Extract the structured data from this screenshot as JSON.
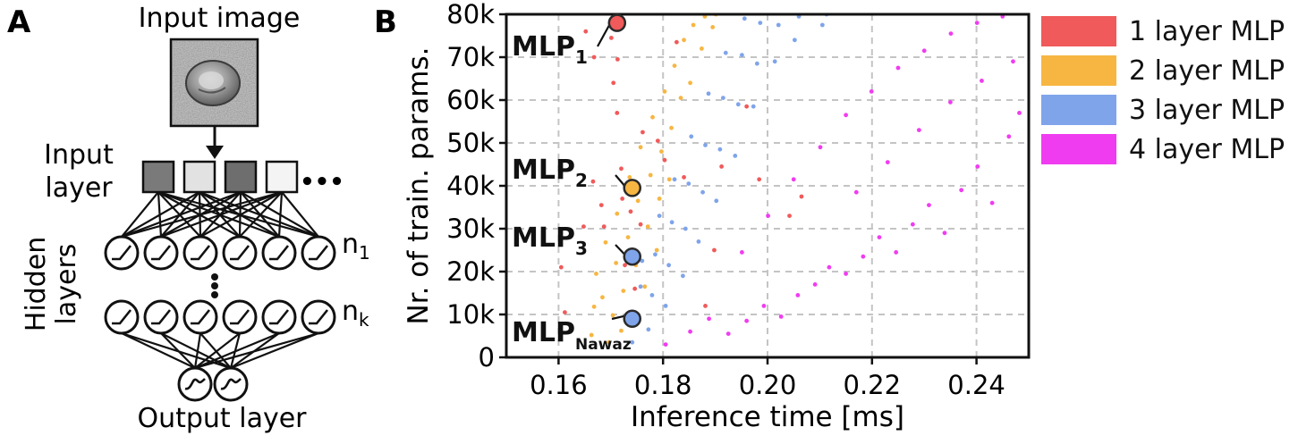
{
  "panel_a": {
    "letter": "A",
    "input_image_label": "Input image",
    "input_layer_label_1": "Input",
    "input_layer_label_2": "layer",
    "input_ellipsis": "•••",
    "hidden_layers_label_1": "Hidden",
    "hidden_layers_label_2": "layers",
    "n1_label": "n",
    "n1_sub": "1",
    "nk_label": "n",
    "nk_sub": "k",
    "output_layer_label": "Output layer",
    "input_squares": [
      "#7a7a7a",
      "#e2e2e2",
      "#6e6e6e",
      "#f4f4f4"
    ]
  },
  "panel_b": {
    "letter": "B"
  },
  "chart_data": {
    "type": "scatter",
    "title": "",
    "xlabel": "Inference time [ms]",
    "ylabel": "Nr. of train. params.",
    "xlim": [
      0.15,
      0.25
    ],
    "ylim": [
      0,
      80000
    ],
    "xticks": [
      0.16,
      0.18,
      0.2,
      0.22,
      0.24
    ],
    "xtick_labels": [
      "0.16",
      "0.18",
      "0.20",
      "0.22",
      "0.24"
    ],
    "yticks": [
      0,
      10000,
      20000,
      30000,
      40000,
      50000,
      60000,
      70000,
      80000
    ],
    "ytick_labels": [
      "0",
      "10k",
      "20k",
      "30k",
      "40k",
      "50k",
      "60k",
      "70k",
      "80k"
    ],
    "grid": true,
    "legend_position": "outside-right",
    "series": [
      {
        "name": "1 layer MLP",
        "color": "#f05a5a",
        "points": [
          [
            0.1605,
            21000
          ],
          [
            0.1612,
            10500
          ],
          [
            0.1648,
            30500
          ],
          [
            0.1652,
            76000
          ],
          [
            0.1666,
            41000
          ],
          [
            0.1668,
            70000
          ],
          [
            0.1682,
            35500
          ],
          [
            0.1687,
            30500
          ],
          [
            0.1701,
            74500
          ],
          [
            0.1705,
            64000
          ],
          [
            0.1712,
            57000
          ],
          [
            0.1713,
            69500
          ],
          [
            0.172,
            44000
          ],
          [
            0.1722,
            37000
          ],
          [
            0.1727,
            21500
          ],
          [
            0.1738,
            34000
          ],
          [
            0.1741,
            23500
          ],
          [
            0.1746,
            16000
          ],
          [
            0.1757,
            31000
          ],
          [
            0.1761,
            52500
          ],
          [
            0.179,
            50500
          ],
          [
            0.1803,
            46000
          ],
          [
            0.1826,
            73500
          ],
          [
            0.184,
            42000
          ],
          [
            0.1881,
            12000
          ],
          [
            0.1898,
            25000
          ],
          [
            0.1912,
            44500
          ],
          [
            0.196,
            58500
          ],
          [
            0.1984,
            41500
          ],
          [
            0.2042,
            33000
          ],
          [
            0.2065,
            37500
          ]
        ]
      },
      {
        "name": "2 layer MLP",
        "color": "#f7b642",
        "points": [
          [
            0.1663,
            5200
          ],
          [
            0.1668,
            11800
          ],
          [
            0.1672,
            19500
          ],
          [
            0.1684,
            14000
          ],
          [
            0.169,
            26800
          ],
          [
            0.1696,
            3500
          ],
          [
            0.1704,
            9800
          ],
          [
            0.171,
            22000
          ],
          [
            0.1712,
            33500
          ],
          [
            0.172,
            6200
          ],
          [
            0.1724,
            15500
          ],
          [
            0.1733,
            28000
          ],
          [
            0.1736,
            42000
          ],
          [
            0.1741,
            10000
          ],
          [
            0.1748,
            21500
          ],
          [
            0.1752,
            36500
          ],
          [
            0.1757,
            49000
          ],
          [
            0.1765,
            16500
          ],
          [
            0.1771,
            30500
          ],
          [
            0.1776,
            42500
          ],
          [
            0.178,
            56000
          ],
          [
            0.1788,
            25000
          ],
          [
            0.1793,
            37000
          ],
          [
            0.1797,
            48000
          ],
          [
            0.1803,
            62000
          ],
          [
            0.1812,
            41500
          ],
          [
            0.1816,
            53500
          ],
          [
            0.1822,
            68000
          ],
          [
            0.1834,
            60500
          ],
          [
            0.184,
            74000
          ],
          [
            0.1852,
            64000
          ],
          [
            0.1858,
            77500
          ],
          [
            0.1874,
            72000
          ],
          [
            0.188,
            79500
          ],
          [
            0.1895,
            77000
          ],
          [
            0.1901,
            80000
          ]
        ]
      },
      {
        "name": "3 layer MLP",
        "color": "#7fa4ea",
        "points": [
          [
            0.1741,
            3500
          ],
          [
            0.1749,
            9500
          ],
          [
            0.1757,
            16500
          ],
          [
            0.176,
            22500
          ],
          [
            0.1772,
            6500
          ],
          [
            0.1779,
            14500
          ],
          [
            0.1785,
            24000
          ],
          [
            0.1793,
            33000
          ],
          [
            0.1805,
            12000
          ],
          [
            0.1811,
            21500
          ],
          [
            0.1817,
            31500
          ],
          [
            0.1822,
            41500
          ],
          [
            0.1838,
            19000
          ],
          [
            0.1843,
            30000
          ],
          [
            0.1849,
            40500
          ],
          [
            0.1854,
            51500
          ],
          [
            0.1868,
            27000
          ],
          [
            0.1876,
            38500
          ],
          [
            0.1881,
            49500
          ],
          [
            0.1887,
            61500
          ],
          [
            0.1902,
            36500
          ],
          [
            0.1909,
            48500
          ],
          [
            0.1915,
            60500
          ],
          [
            0.192,
            71000
          ],
          [
            0.1938,
            47000
          ],
          [
            0.1944,
            59000
          ],
          [
            0.1951,
            70500
          ],
          [
            0.1956,
            79000
          ],
          [
            0.1973,
            58500
          ],
          [
            0.198,
            68500
          ],
          [
            0.1986,
            78000
          ],
          [
            0.2014,
            69000
          ],
          [
            0.2021,
            77500
          ],
          [
            0.2052,
            74000
          ],
          [
            0.206,
            79500
          ],
          [
            0.2105,
            77500
          ],
          [
            0.2113,
            80000
          ]
        ]
      },
      {
        "name": "4 layer MLP",
        "color": "#f03cf0",
        "points": [
          [
            0.1805,
            3000
          ],
          [
            0.1852,
            6000
          ],
          [
            0.1888,
            9000
          ],
          [
            0.1925,
            5500
          ],
          [
            0.196,
            8500
          ],
          [
            0.1993,
            12000
          ],
          [
            0.2026,
            9500
          ],
          [
            0.2058,
            14500
          ],
          [
            0.2091,
            17000
          ],
          [
            0.2118,
            21000
          ],
          [
            0.215,
            19500
          ],
          [
            0.2183,
            23500
          ],
          [
            0.2214,
            28000
          ],
          [
            0.2246,
            24500
          ],
          [
            0.2278,
            31000
          ],
          [
            0.2309,
            35500
          ],
          [
            0.2339,
            29000
          ],
          [
            0.2371,
            39000
          ],
          [
            0.2402,
            44500
          ],
          [
            0.243,
            36000
          ],
          [
            0.2462,
            51500
          ],
          [
            0.2482,
            57000
          ],
          [
            0.1951,
            24500
          ],
          [
            0.2001,
            33000
          ],
          [
            0.205,
            41500
          ],
          [
            0.2101,
            49000
          ],
          [
            0.215,
            56500
          ],
          [
            0.2199,
            62000
          ],
          [
            0.225,
            67500
          ],
          [
            0.23,
            71500
          ],
          [
            0.2351,
            75500
          ],
          [
            0.2401,
            78000
          ],
          [
            0.245,
            79500
          ],
          [
            0.217,
            38500
          ],
          [
            0.223,
            45500
          ],
          [
            0.229,
            53000
          ],
          [
            0.235,
            59500
          ],
          [
            0.241,
            64500
          ],
          [
            0.247,
            69000
          ]
        ]
      }
    ],
    "annotations": [
      {
        "label": "MLP",
        "subscript": "1",
        "x": 0.1712,
        "y": 78000,
        "color": "#f05a5a"
      },
      {
        "label": "MLP",
        "subscript": "2",
        "x": 0.1741,
        "y": 39500,
        "color": "#f7b642"
      },
      {
        "label": "MLP",
        "subscript": "3",
        "x": 0.1741,
        "y": 23500,
        "color": "#7fa4ea"
      },
      {
        "label": "MLP",
        "subscript": "Nawaz",
        "x": 0.1741,
        "y": 9000,
        "color": "#7fa4ea"
      }
    ]
  },
  "colors": {
    "axis": "#111111",
    "grid": "#c4c4c4",
    "marker_edge": "#2a2a2a",
    "ink": "#111111"
  }
}
